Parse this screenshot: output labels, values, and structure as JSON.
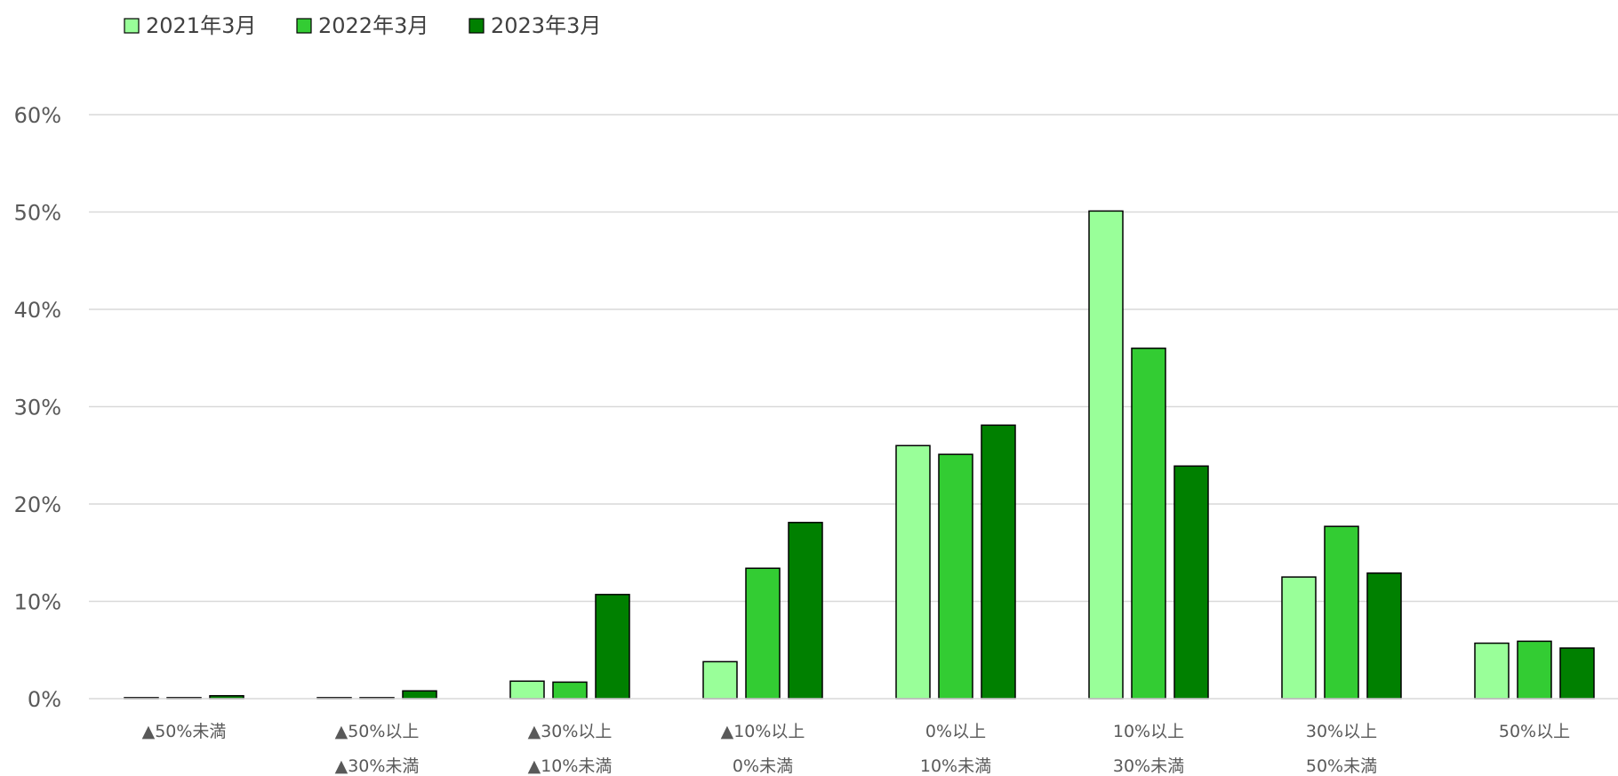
{
  "chart_data": {
    "type": "bar",
    "title": "",
    "xlabel": "",
    "ylabel": "",
    "categories": [
      {
        "line1": "▲50%未満",
        "line2": ""
      },
      {
        "line1": "▲50%以上",
        "line2": "▲30%未満"
      },
      {
        "line1": "▲30%以上",
        "line2": "▲10%未満"
      },
      {
        "line1": "▲10%以上",
        "line2": "0%未満"
      },
      {
        "line1": "0%以上",
        "line2": "10%未満"
      },
      {
        "line1": "10%以上",
        "line2": "30%未満"
      },
      {
        "line1": "30%以上",
        "line2": "50%未満"
      },
      {
        "line1": "50%以上",
        "line2": ""
      }
    ],
    "series": [
      {
        "name": "2021年3月",
        "color": "#99ff99",
        "values": [
          0.1,
          0.1,
          1.8,
          3.8,
          26.0,
          50.1,
          12.5,
          5.7
        ]
      },
      {
        "name": "2022年3月",
        "color": "#33cc33",
        "values": [
          0.1,
          0.1,
          1.7,
          13.4,
          25.1,
          36.0,
          17.7,
          5.9
        ]
      },
      {
        "name": "2023年3月",
        "color": "#008000",
        "values": [
          0.3,
          0.8,
          10.7,
          18.1,
          28.1,
          23.9,
          12.9,
          5.2
        ]
      }
    ],
    "y_ticks": [
      "0%",
      "10%",
      "20%",
      "30%",
      "40%",
      "50%",
      "60%"
    ],
    "ylim": [
      0,
      60
    ],
    "grid": true,
    "legend_position": "top-left"
  }
}
